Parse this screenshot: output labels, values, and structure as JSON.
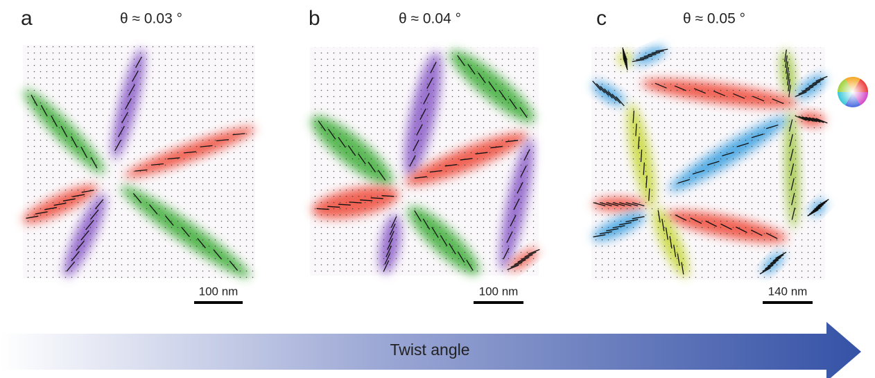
{
  "panels": [
    {
      "label": "a",
      "title": "θ ≈ 0.03 °",
      "scale_bar": "100 nm"
    },
    {
      "label": "b",
      "title": "θ ≈ 0.04 °",
      "scale_bar": "100 nm"
    },
    {
      "label": "c",
      "title": "θ ≈ 0.05 °",
      "scale_bar": "140 nm"
    }
  ],
  "arrow_label": "Twist angle"
}
